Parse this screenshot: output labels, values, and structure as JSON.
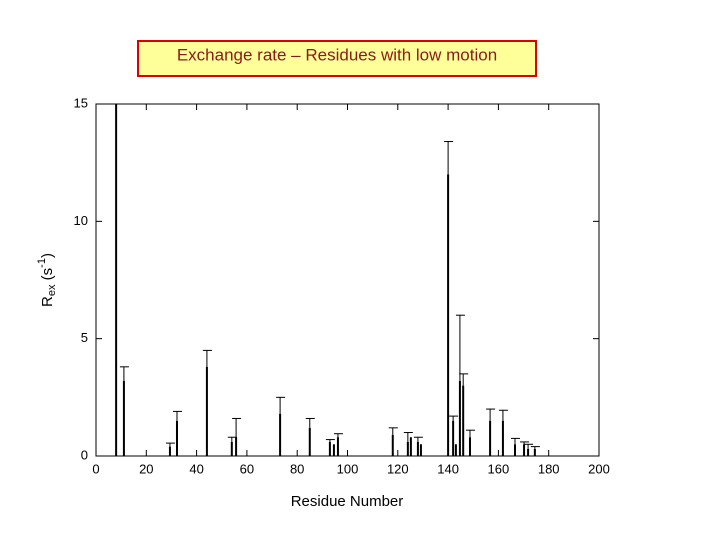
{
  "chart_data": {
    "type": "bar",
    "title": "Exchange rate – Residues with low motion",
    "x_label": "Residue Number",
    "y_label_parts": [
      "R",
      "ex",
      " (s",
      "-1",
      ")"
    ],
    "x": [
      8,
      11.1,
      29.4,
      32.2,
      44.1,
      54,
      55.7,
      73.2,
      85,
      93,
      94.6,
      96.2,
      118,
      124,
      125.2,
      128,
      129.2,
      140,
      142,
      143.1,
      144.7,
      146,
      148.7,
      156.7,
      161.8,
      166.6,
      170.2,
      171.8,
      174.5
    ],
    "values": [
      15,
      3.2,
      0.4,
      1.5,
      3.8,
      0.6,
      0.8,
      1.8,
      1.2,
      0.6,
      0.5,
      0.8,
      0.9,
      0.6,
      0.8,
      0.6,
      0.5,
      12,
      1.5,
      0.5,
      3.2,
      3.0,
      0.8,
      1.5,
      1.5,
      0.5,
      0.5,
      0.3,
      0.3
    ],
    "errors": [
      null,
      0.6,
      0.15,
      0.4,
      0.7,
      0.2,
      0.8,
      0.7,
      0.4,
      0.1,
      null,
      0.15,
      0.3,
      0.4,
      null,
      0.2,
      null,
      1.4,
      0.2,
      null,
      2.8,
      0.5,
      0.3,
      0.5,
      0.45,
      0.25,
      0.1,
      0.2,
      0.1
    ],
    "color": "#000000",
    "xlim": [
      0,
      200
    ],
    "xticks": [
      0,
      20,
      40,
      60,
      80,
      100,
      120,
      140,
      160,
      180,
      200
    ],
    "ylim": [
      0,
      15
    ],
    "yticks": [
      0,
      5,
      10,
      15
    ]
  }
}
